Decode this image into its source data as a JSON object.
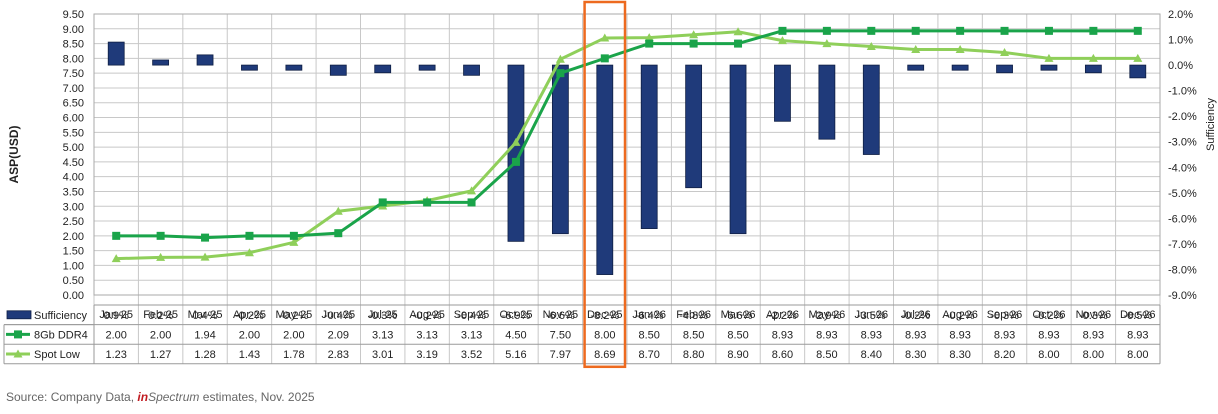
{
  "chart_data": {
    "type": "bar",
    "categories": [
      "Jan-25",
      "Feb-25",
      "Mar-25",
      "Apr-25",
      "May-25",
      "Jun-25",
      "Jul-25",
      "Aug-25",
      "Sep-25",
      "Oct-25",
      "Nov-25",
      "Dec-25",
      "Jan-26",
      "Feb-26",
      "Mar-26",
      "Apr-26",
      "May-26",
      "Jun-26",
      "Jul-26",
      "Aug-26",
      "Sep-26",
      "Oct-26",
      "Nov-26",
      "Dec-26"
    ],
    "ylabel": "ASP(USD)",
    "y2label": "Sufficiency",
    "ylim": [
      0,
      9.5
    ],
    "y2lim": [
      -9.0,
      2.0
    ],
    "yticks": [
      "0.00",
      "0.50",
      "1.00",
      "1.50",
      "2.00",
      "2.50",
      "3.00",
      "3.50",
      "4.00",
      "4.50",
      "5.00",
      "5.50",
      "6.00",
      "6.50",
      "7.00",
      "7.50",
      "8.00",
      "8.50",
      "9.00",
      "9.50"
    ],
    "y2ticks": [
      "2.0%",
      "1.0%",
      "0.0%",
      "-1.0%",
      "-2.0%",
      "-3.0%",
      "-4.0%",
      "-5.0%",
      "-6.0%",
      "-7.0%",
      "-8.0%",
      "-9.0%"
    ],
    "grid": true,
    "legend_position": "table-left",
    "highlight_category": "Dec-25",
    "series": [
      {
        "name": "Sufficiency",
        "kind": "bar",
        "axis": "right",
        "color": "#1f3a7a",
        "values": [
          0.9,
          0.2,
          0.4,
          -0.2,
          -0.2,
          -0.4,
          -0.3,
          -0.2,
          -0.4,
          -6.9,
          -6.6,
          -8.2,
          -6.4,
          -4.8,
          -6.6,
          -2.2,
          -2.9,
          -3.5,
          -0.2,
          -0.2,
          -0.3,
          -0.2,
          -0.3,
          -0.5
        ],
        "labels": [
          "0.9%",
          "0.2%",
          "0.4%",
          "-0.2%",
          "-0.2%",
          "-0.4%",
          "-0.3%",
          "-0.2%",
          "-0.4%",
          "-6.9%",
          "-6.6%",
          "-8.2%",
          "-6.4%",
          "-4.8%",
          "-6.6%",
          "-2.2%",
          "-2.9%",
          "-3.5%",
          "-0.2%",
          "-0.2%",
          "-0.3%",
          "-0.2%",
          "-0.3%",
          "-0.5%"
        ]
      },
      {
        "name": "8Gb DDR4",
        "kind": "line",
        "axis": "left",
        "color": "#1aa44a",
        "marker": "square",
        "values": [
          2.0,
          2.0,
          1.94,
          2.0,
          2.0,
          2.09,
          3.13,
          3.13,
          3.13,
          4.5,
          7.5,
          8.0,
          8.5,
          8.5,
          8.5,
          8.93,
          8.93,
          8.93,
          8.93,
          8.93,
          8.93,
          8.93,
          8.93,
          8.93
        ],
        "labels": [
          "2.00",
          "2.00",
          "1.94",
          "2.00",
          "2.00",
          "2.09",
          "3.13",
          "3.13",
          "3.13",
          "4.50",
          "7.50",
          "8.00",
          "8.50",
          "8.50",
          "8.50",
          "8.93",
          "8.93",
          "8.93",
          "8.93",
          "8.93",
          "8.93",
          "8.93",
          "8.93",
          "8.93"
        ]
      },
      {
        "name": "Spot Low",
        "kind": "line",
        "axis": "left",
        "color": "#8fcf5a",
        "marker": "triangle",
        "values": [
          1.23,
          1.27,
          1.28,
          1.43,
          1.78,
          2.83,
          3.01,
          3.19,
          3.52,
          5.16,
          7.97,
          8.69,
          8.7,
          8.8,
          8.9,
          8.6,
          8.5,
          8.4,
          8.3,
          8.3,
          8.2,
          8.0,
          8.0,
          8.0
        ],
        "labels": [
          "1.23",
          "1.27",
          "1.28",
          "1.43",
          "1.78",
          "2.83",
          "3.01",
          "3.19",
          "3.52",
          "5.16",
          "7.97",
          "8.69",
          "8.70",
          "8.80",
          "8.90",
          "8.60",
          "8.50",
          "8.40",
          "8.30",
          "8.30",
          "8.20",
          "8.00",
          "8.00",
          "8.00"
        ]
      }
    ],
    "colors": {
      "grid": "#c8c8c8",
      "highlight": "#ed6a1f",
      "bar_edge": "#0f1f44"
    }
  },
  "source": {
    "prefix": "Source: Company Data, ",
    "brand_in": "in",
    "brand_spectrum": "Spectrum",
    "suffix": " estimates, Nov. 2025"
  }
}
